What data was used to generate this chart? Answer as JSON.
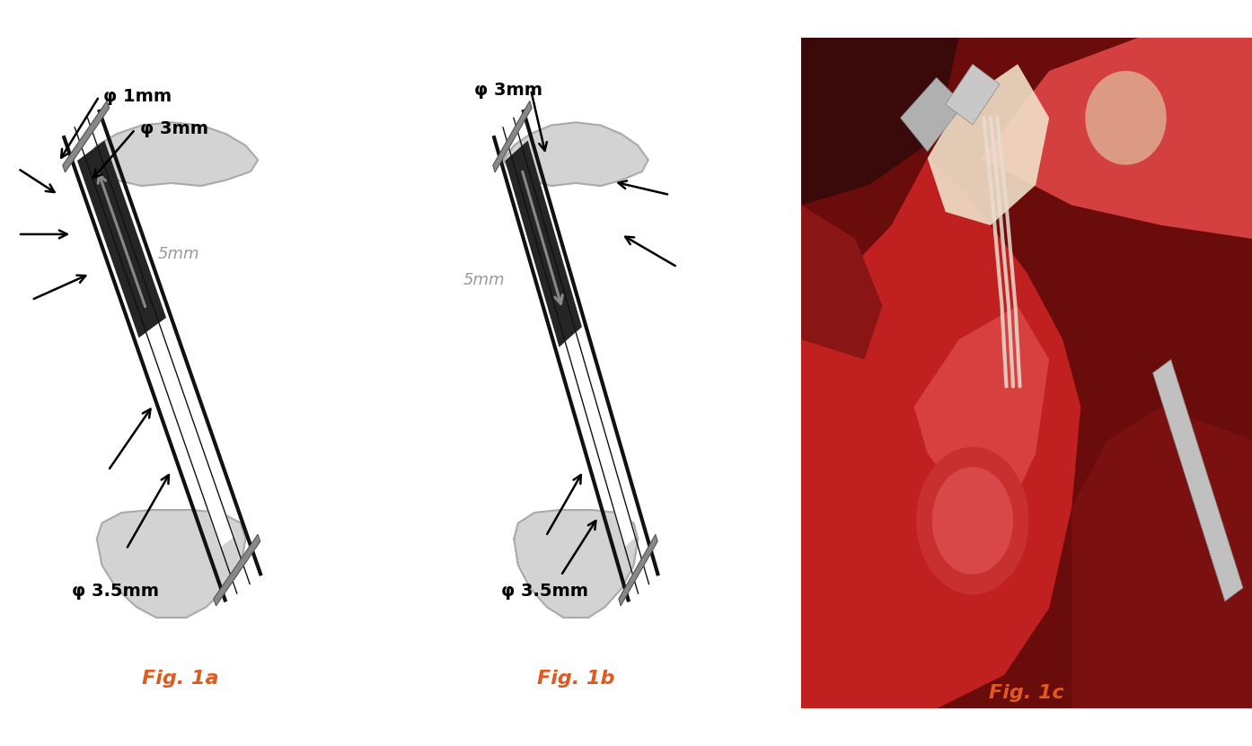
{
  "fig_labels": [
    "Fig. 1a",
    "Fig. 1b",
    "Fig. 1c"
  ],
  "fig_label_color": "#E05A20",
  "fig_label_fontsize": 16,
  "background_color": "#ffffff",
  "bone_color": "#d3d3d3",
  "bone_edge_color": "#aaaaaa",
  "dark": "#111111",
  "gray_bar_color": "#888888",
  "gray_arrow_color": "#888888",
  "dim_text_color": "#999999",
  "dim_text_fontsize": 13,
  "black_text_fontsize": 14,
  "phi_labels_fig1a": [
    "φ 1mm",
    "φ 3mm",
    "φ 3.5mm"
  ],
  "phi_labels_fig1b": [
    "φ 3mm",
    "φ 3.5mm"
  ],
  "dim_5mm_label": "5mm",
  "socket_gray": "#777777",
  "implant_dark": "#252525",
  "graft_white": "#ffffff"
}
